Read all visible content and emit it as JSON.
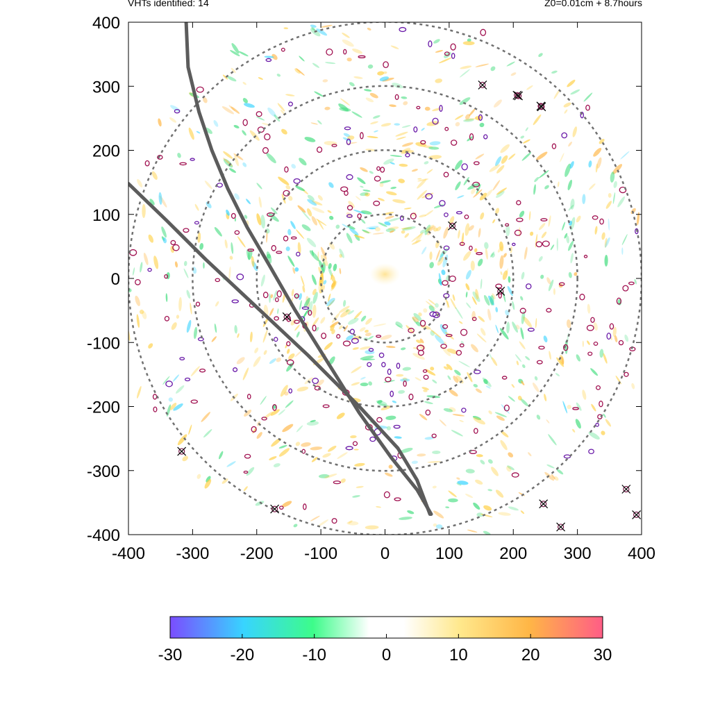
{
  "header": {
    "left": "VHTs identified: 14",
    "right": "Z0=0.01cm  + 8.7hours"
  },
  "chart_data": {
    "type": "heatmap",
    "title": "",
    "xlabel": "",
    "ylabel": "",
    "xlim": [
      -400,
      400
    ],
    "ylim": [
      -400,
      400
    ],
    "x_ticks": [
      "-400",
      "-300",
      "-200",
      "-100",
      "0",
      "100",
      "200",
      "300",
      "400"
    ],
    "y_ticks": [
      "400",
      "300",
      "200",
      "100",
      "0",
      "-100",
      "-200",
      "-300",
      "-400"
    ],
    "x_tick_values": [
      -400,
      -300,
      -200,
      -100,
      0,
      100,
      200,
      300,
      400
    ],
    "y_tick_values": [
      400,
      300,
      200,
      100,
      0,
      -100,
      -200,
      -300,
      -400
    ],
    "range_rings": [
      100,
      200,
      300,
      400
    ],
    "vht_count": 14,
    "vht_markers": [
      {
        "x": 152,
        "y": 302
      },
      {
        "x": 206,
        "y": 286
      },
      {
        "x": 243,
        "y": 269
      },
      {
        "x": 105,
        "y": 82
      },
      {
        "x": 180,
        "y": -20
      },
      {
        "x": -153,
        "y": -60
      },
      {
        "x": -317,
        "y": -270
      },
      {
        "x": -172,
        "y": -360
      },
      {
        "x": 247,
        "y": -352
      },
      {
        "x": 274,
        "y": -388
      },
      {
        "x": 376,
        "y": -329
      },
      {
        "x": 392,
        "y": -369
      },
      {
        "x": 244,
        "y": 268
      },
      {
        "x": 208,
        "y": 285
      }
    ],
    "track_lines": [
      [
        [
          -310,
          400
        ],
        [
          -307,
          330
        ],
        [
          -290,
          260
        ],
        [
          -270,
          200
        ],
        [
          -245,
          140
        ],
        [
          -215,
          80
        ],
        [
          -180,
          20
        ],
        [
          -140,
          -50
        ],
        [
          -90,
          -130
        ],
        [
          -40,
          -210
        ],
        [
          10,
          -280
        ],
        [
          50,
          -330
        ],
        [
          72,
          -368
        ]
      ],
      [
        [
          -400,
          148
        ],
        [
          -340,
          90
        ],
        [
          -280,
          30
        ],
        [
          -200,
          -45
        ],
        [
          -120,
          -120
        ],
        [
          -40,
          -200
        ],
        [
          20,
          -265
        ],
        [
          50,
          -315
        ],
        [
          70,
          -368
        ]
      ]
    ],
    "colorbar": {
      "min": -30,
      "max": 30,
      "ticks": [
        "-30",
        "-20",
        "-10",
        "0",
        "10",
        "20",
        "30"
      ],
      "colors": [
        "#7a4dff",
        "#38d4ff",
        "#3dfc8a",
        "#ffffff",
        "#ffe88c",
        "#ffb646",
        "#ff5d86"
      ]
    },
    "colors": {
      "ring": "#707070",
      "track": "#5c5c5c",
      "contour": "#a01050",
      "positive": "#ffcf40",
      "negative": "#3ddc7a"
    }
  }
}
